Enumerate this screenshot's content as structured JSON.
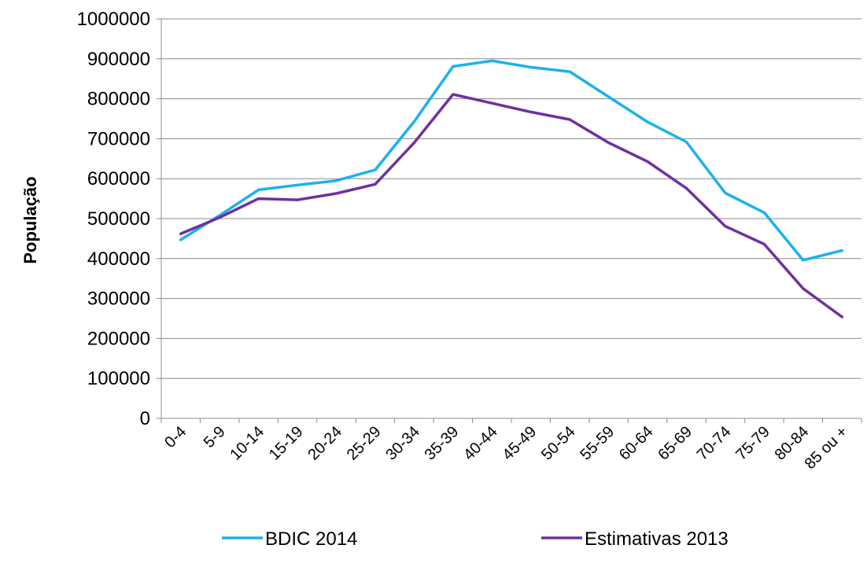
{
  "chart_data": {
    "type": "line",
    "title": "",
    "xlabel": "",
    "ylabel": "População",
    "categories": [
      "0-4",
      "5-9",
      "10-14",
      "15-19",
      "20-24",
      "25-29",
      "30-34",
      "35-39",
      "40-44",
      "45-49",
      "50-54",
      "55-59",
      "60-64",
      "65-69",
      "70-74",
      "75-79",
      "80-84",
      "85 ou +"
    ],
    "ylim": [
      0,
      1000000
    ],
    "yticks": [
      0,
      100000,
      200000,
      300000,
      400000,
      500000,
      600000,
      700000,
      800000,
      900000,
      1000000
    ],
    "grid": "horizontal",
    "legend_position": "bottom",
    "series": [
      {
        "name": "BDIC 2014",
        "color": "#1cb1ec",
        "values": [
          447000,
          508000,
          572000,
          584000,
          595000,
          622000,
          743000,
          881000,
          895000,
          879000,
          868000,
          805000,
          742000,
          692000,
          564000,
          515000,
          396000,
          420000
        ]
      },
      {
        "name": "Estimativas 2013",
        "color": "#7030a0",
        "values": [
          462000,
          503000,
          550000,
          547000,
          563000,
          586000,
          690000,
          811000,
          789000,
          767000,
          748000,
          690000,
          643000,
          576000,
          481000,
          436000,
          325000,
          254000
        ]
      }
    ]
  }
}
